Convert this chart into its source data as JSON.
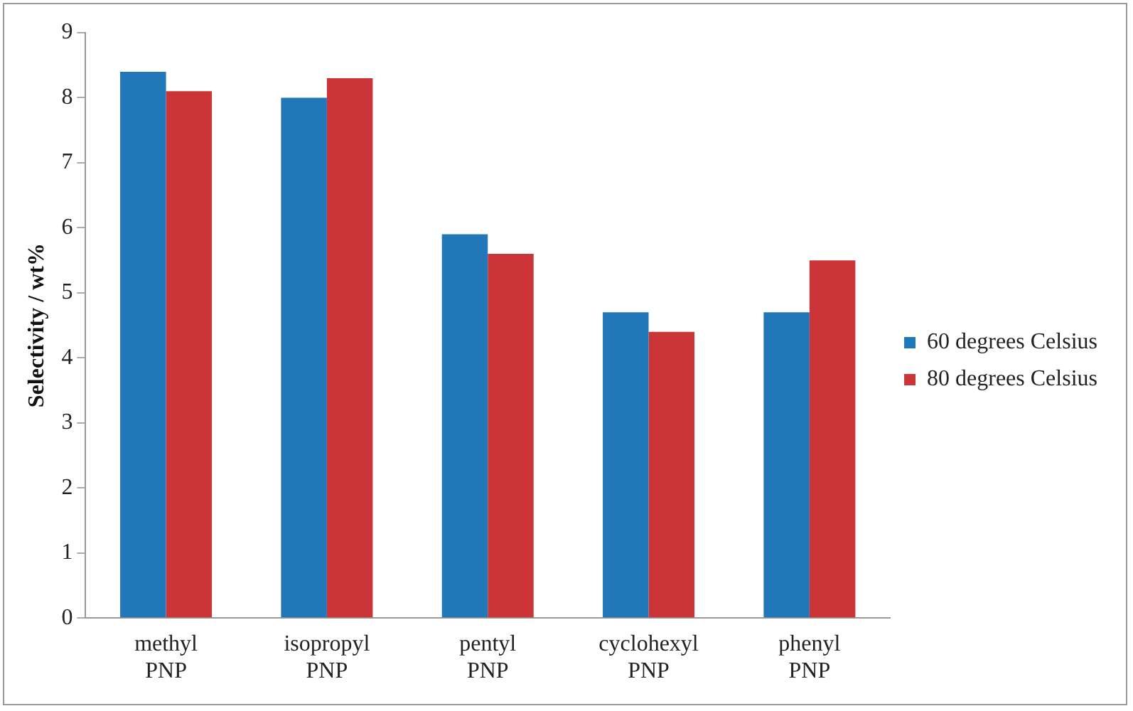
{
  "chart_data": {
    "type": "bar",
    "ylabel": "Selectivity / wt%",
    "categories": [
      "methyl PNP",
      "isopropyl PNP",
      "pentyl PNP",
      "cyclohexyl PNP",
      "phenyl PNP"
    ],
    "series": [
      {
        "name": "60 degrees Celsius",
        "color": "#2277b9",
        "values": [
          8.4,
          8.0,
          5.9,
          4.7,
          4.7
        ]
      },
      {
        "name": "80 degrees Celsius",
        "color": "#cc3538",
        "values": [
          8.1,
          8.3,
          5.6,
          4.4,
          5.5
        ]
      }
    ],
    "ylim": [
      0,
      9
    ],
    "yticks": [
      0,
      1,
      2,
      3,
      4,
      5,
      6,
      7,
      8,
      9
    ],
    "grid": false,
    "legend": "right"
  }
}
